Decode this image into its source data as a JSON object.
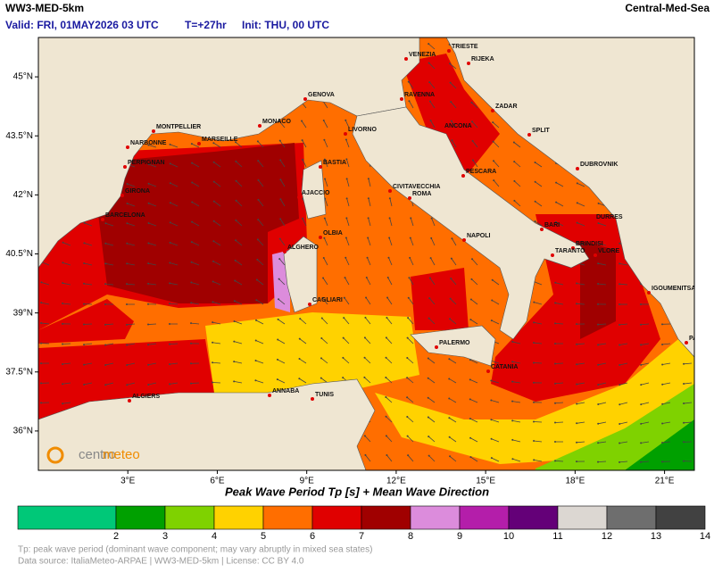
{
  "header": {
    "model": "WW3-MED-5km",
    "region": "Central-Med-Sea",
    "valid": "Valid: FRI, 01MAY2026 03 UTC",
    "step": "T=+27hr",
    "init": "Init: THU, 00 UTC"
  },
  "map": {
    "lon_ticks": [
      {
        "value": 3,
        "label": "3°E"
      },
      {
        "value": 6,
        "label": "6°E"
      },
      {
        "value": 9,
        "label": "9°E"
      },
      {
        "value": 12,
        "label": "12°E"
      },
      {
        "value": 15,
        "label": "15°E"
      },
      {
        "value": 18,
        "label": "18°E"
      },
      {
        "value": 21,
        "label": "21°E"
      }
    ],
    "lat_ticks": [
      {
        "value": 45,
        "label": "45°N"
      },
      {
        "value": 43.5,
        "label": "43.5°N"
      },
      {
        "value": 42,
        "label": "42°N"
      },
      {
        "value": 40.5,
        "label": "40.5°N"
      },
      {
        "value": 39,
        "label": "39°N"
      },
      {
        "value": 37.5,
        "label": "37.5°N"
      },
      {
        "value": 36,
        "label": "36°N"
      }
    ],
    "xlim": [
      0,
      22
    ],
    "ylim": [
      35,
      46
    ],
    "cities": [
      "TRIESTE",
      "VENEZIA",
      "RIJEKA",
      "GENOVA",
      "RAVENNA",
      "ZADAR",
      "MONTPELLIER",
      "MONACO",
      "LIVORNO",
      "ANCONA",
      "SPLIT",
      "NARBONNE",
      "MARSEILLE",
      "PERPIGNAN",
      "BASTIA",
      "DUBROVNIK",
      "PESCARA",
      "GIRONA",
      "AJACCIO",
      "CIVITAVECCHIA",
      "ROMA",
      "BARCELONA",
      "DURRES",
      "BARI",
      "OLBIA",
      "NAPOLI",
      "BRINDISI",
      "TARANTO",
      "VLORE",
      "ALGHERO",
      "IGOUMENITSA",
      "CAGLIARI",
      "PALERMO",
      "PATRAS",
      "CATANIA",
      "ALGIERS",
      "ANNABA",
      "TUNIS"
    ],
    "logo": [
      "centro",
      "meteo"
    ]
  },
  "colorbar": {
    "title": "Peak Wave Period Tp [s]  +  Mean Wave Direction",
    "ticks": [
      2,
      3,
      4,
      5,
      6,
      7,
      8,
      9,
      10,
      11,
      12,
      13,
      14
    ],
    "colors": [
      "#00c878",
      "#00a000",
      "#7fd200",
      "#ffd200",
      "#ff6e00",
      "#e00000",
      "#a00000",
      "#dc8cdc",
      "#b41eaa",
      "#640078",
      "#dcd7d2",
      "#6e6e6e",
      "#414141"
    ]
  },
  "footer": {
    "note": "Tp: peak wave period (dominant wave component; may vary abruptly in mixed sea states)",
    "source": "Data source: ItaliaMeteo-ARPAE | WW3-MED-5km | License: CC BY 4.0"
  }
}
